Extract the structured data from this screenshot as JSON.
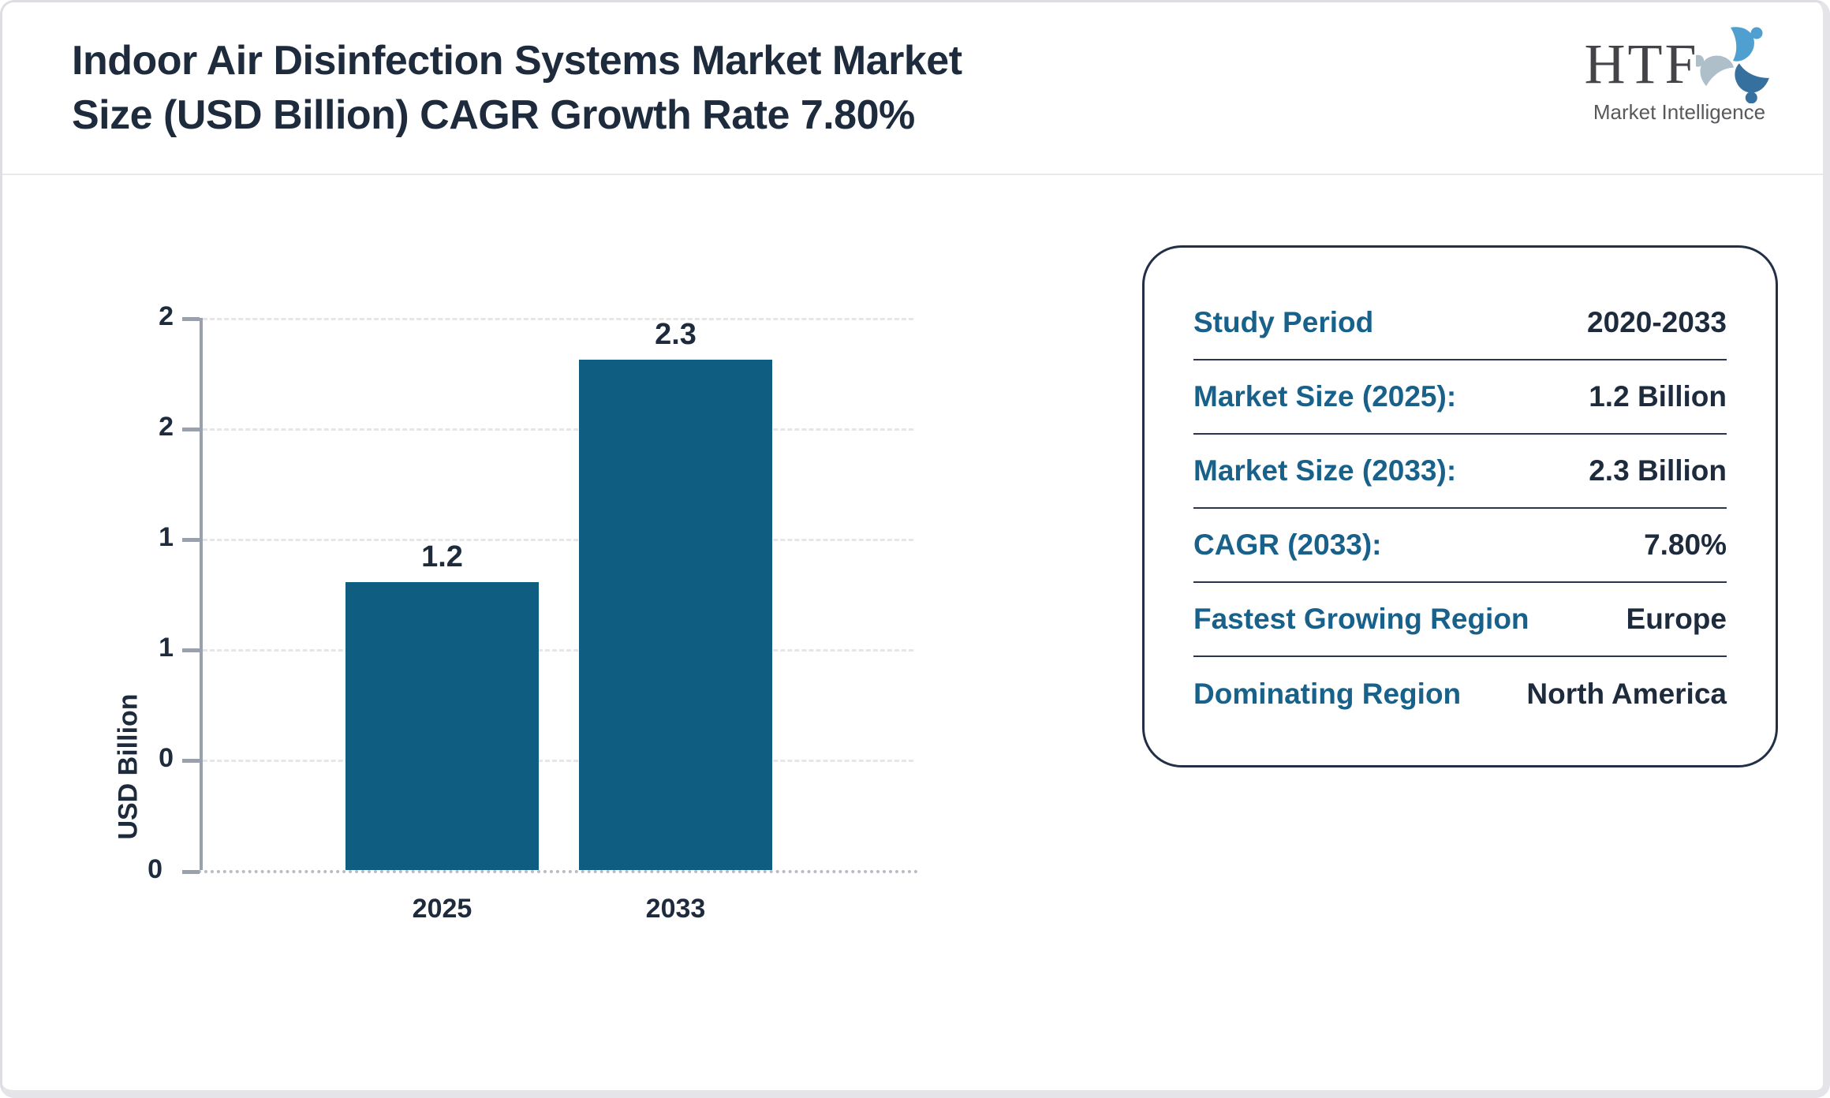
{
  "header": {
    "title_line1": "Indoor Air Disinfection Systems Market Market",
    "title_line2": "Size (USD Billion) CAGR Growth Rate 7.80%",
    "title": "Indoor Air Disinfection Systems Market Market Size (USD Billion) CAGR Growth Rate 7.80%"
  },
  "logo": {
    "text": "HTF",
    "subtitle": "Market Intelligence"
  },
  "chart_data": {
    "type": "bar",
    "title": "Indoor Air Disinfection Systems Market Market Size (USD Billion) CAGR Growth Rate 7.80%",
    "categories": [
      "2025",
      "2033"
    ],
    "values": [
      1.2,
      2.3
    ],
    "bar_value_labels": [
      "1.2",
      "2.3"
    ],
    "xlabel": "",
    "ylabel": "USD Billion",
    "ylim": [
      0,
      2.3
    ],
    "yticks_top_to_bottom": [
      "2",
      "2",
      "1",
      "1",
      "0",
      "0"
    ],
    "grid": "horizontal dashed",
    "legend_position": "none",
    "bar_color": "#0f5e81"
  },
  "info_panel": {
    "rows": [
      {
        "label": "Study Period",
        "value": "2020-2033"
      },
      {
        "label": "Market Size (2025):",
        "value": "1.2 Billion"
      },
      {
        "label": "Market Size (2033):",
        "value": "2.3 Billion"
      },
      {
        "label": "CAGR (2033):",
        "value": "7.80%"
      },
      {
        "label": "Fastest Growing Region",
        "value": "Europe"
      },
      {
        "label": "Dominating Region",
        "value": "North America"
      }
    ]
  },
  "colors": {
    "text_dark": "#1d2b3d",
    "label_teal": "#17618a",
    "bar_fill": "#0f5e81",
    "axis_gray": "#9aa1ac",
    "grid_gray": "#e6e6e8",
    "panel_border": "#222f47"
  }
}
